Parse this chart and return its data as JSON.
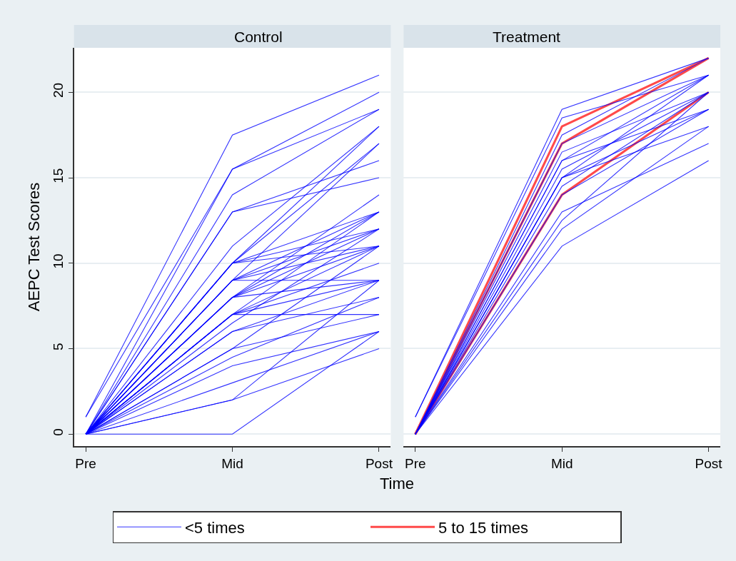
{
  "chart_data": [
    {
      "type": "line",
      "title": "Control",
      "xlabel": "Time",
      "ylabel": "AEPC Test Scores",
      "categories": [
        "Pre",
        "Mid",
        "Post"
      ],
      "ylim": [
        -0.7,
        22.6
      ],
      "yticks": [
        0,
        5,
        10,
        15,
        20
      ],
      "grid": "y",
      "legend": "bottom",
      "line_style": "solid",
      "marker": "none",
      "series": [
        {
          "name": "<5 times",
          "color": "#0000ff",
          "values": [
            1,
            17.5,
            21
          ]
        },
        {
          "color": "#0000ff",
          "values": [
            1,
            15.5,
            20
          ]
        },
        {
          "color": "#0000ff",
          "values": [
            0,
            15.5,
            19
          ]
        },
        {
          "color": "#0000ff",
          "values": [
            0,
            14,
            19
          ]
        },
        {
          "color": "#0000ff",
          "values": [
            0,
            13,
            16
          ]
        },
        {
          "color": "#0000ff",
          "values": [
            0,
            13,
            15
          ]
        },
        {
          "color": "#0000ff",
          "values": [
            0,
            11,
            18
          ]
        },
        {
          "color": "#0000ff",
          "values": [
            0,
            10,
            18
          ]
        },
        {
          "color": "#0000ff",
          "values": [
            0,
            10,
            17
          ]
        },
        {
          "color": "#0000ff",
          "values": [
            0,
            10,
            13
          ]
        },
        {
          "color": "#0000ff",
          "values": [
            0,
            10,
            12
          ]
        },
        {
          "color": "#0000ff",
          "values": [
            0,
            10,
            11
          ]
        },
        {
          "color": "#0000ff",
          "values": [
            0,
            9,
            17
          ]
        },
        {
          "color": "#0000ff",
          "values": [
            0,
            9,
            13
          ]
        },
        {
          "color": "#0000ff",
          "values": [
            0,
            9,
            12
          ]
        },
        {
          "color": "#0000ff",
          "values": [
            0,
            9,
            11
          ]
        },
        {
          "color": "#0000ff",
          "values": [
            0,
            9,
            9
          ]
        },
        {
          "color": "#0000ff",
          "values": [
            0,
            8,
            14
          ]
        },
        {
          "color": "#0000ff",
          "values": [
            0,
            8,
            13
          ]
        },
        {
          "color": "#0000ff",
          "values": [
            0,
            8,
            12
          ]
        },
        {
          "color": "#0000ff",
          "values": [
            0,
            8,
            11
          ]
        },
        {
          "color": "#0000ff",
          "values": [
            0,
            8,
            9
          ]
        },
        {
          "color": "#0000ff",
          "values": [
            0,
            7,
            13
          ]
        },
        {
          "color": "#0000ff",
          "values": [
            0,
            7,
            11
          ]
        },
        {
          "color": "#0000ff",
          "values": [
            0,
            7,
            10
          ]
        },
        {
          "color": "#0000ff",
          "values": [
            0,
            7,
            9
          ]
        },
        {
          "color": "#0000ff",
          "values": [
            0,
            7,
            7
          ]
        },
        {
          "color": "#0000ff",
          "values": [
            0,
            6.5,
            12
          ]
        },
        {
          "color": "#0000ff",
          "values": [
            0,
            6,
            9
          ]
        },
        {
          "color": "#0000ff",
          "values": [
            0,
            6,
            8
          ]
        },
        {
          "color": "#0000ff",
          "values": [
            0,
            5,
            11
          ]
        },
        {
          "color": "#0000ff",
          "values": [
            0,
            5,
            7
          ]
        },
        {
          "color": "#0000ff",
          "values": [
            0,
            4.5,
            8
          ]
        },
        {
          "color": "#0000ff",
          "values": [
            0,
            4,
            6
          ]
        },
        {
          "color": "#0000ff",
          "values": [
            0,
            3,
            6
          ]
        },
        {
          "color": "#0000ff",
          "values": [
            0,
            2,
            9
          ]
        },
        {
          "color": "#0000ff",
          "values": [
            0,
            2,
            5
          ]
        },
        {
          "color": "#0000ff",
          "values": [
            0,
            0,
            6
          ]
        }
      ]
    },
    {
      "type": "line",
      "title": "Treatment",
      "categories": [
        "Pre",
        "Mid",
        "Post"
      ],
      "ylim": [
        -0.7,
        22.6
      ],
      "yticks": [
        0,
        5,
        10,
        15,
        20
      ],
      "grid": "y",
      "tick_labels": "x",
      "line_style": "solid",
      "marker": "none",
      "series": [
        {
          "color": "#0000ff",
          "values": [
            1,
            19,
            22
          ]
        },
        {
          "color": "#0000ff",
          "values": [
            1,
            18.5,
            21
          ]
        },
        {
          "color": "#0000ff",
          "values": [
            0,
            17.5,
            22
          ]
        },
        {
          "color": "#0000ff",
          "values": [
            0,
            17,
            21
          ]
        },
        {
          "color": "#0000ff",
          "values": [
            0,
            16.5,
            20
          ]
        },
        {
          "color": "#0000ff",
          "values": [
            0,
            16,
            21
          ]
        },
        {
          "color": "#0000ff",
          "values": [
            0,
            16,
            19
          ]
        },
        {
          "color": "#0000ff",
          "values": [
            0,
            15.5,
            20
          ]
        },
        {
          "color": "#0000ff",
          "values": [
            0,
            15,
            21
          ]
        },
        {
          "color": "#0000ff",
          "values": [
            0,
            15,
            18
          ]
        },
        {
          "color": "#0000ff",
          "values": [
            0,
            15,
            19
          ]
        },
        {
          "color": "#0000ff",
          "values": [
            0,
            14.5,
            20
          ]
        },
        {
          "color": "#0000ff",
          "values": [
            0,
            14,
            19
          ]
        },
        {
          "color": "#0000ff",
          "values": [
            0,
            13,
            17
          ]
        },
        {
          "color": "#0000ff",
          "values": [
            0,
            12.5,
            20
          ]
        },
        {
          "color": "#0000ff",
          "values": [
            0,
            12,
            18
          ]
        },
        {
          "color": "#0000ff",
          "values": [
            0,
            11,
            16
          ]
        },
        {
          "name": "5 to 15 times",
          "color": "#ff4a4a",
          "values": [
            0,
            18,
            22
          ]
        },
        {
          "color": "#ff4a4a",
          "values": [
            0,
            17,
            22
          ]
        },
        {
          "color": "#ff4a4a",
          "values": [
            0,
            14,
            20
          ]
        }
      ]
    }
  ]
}
